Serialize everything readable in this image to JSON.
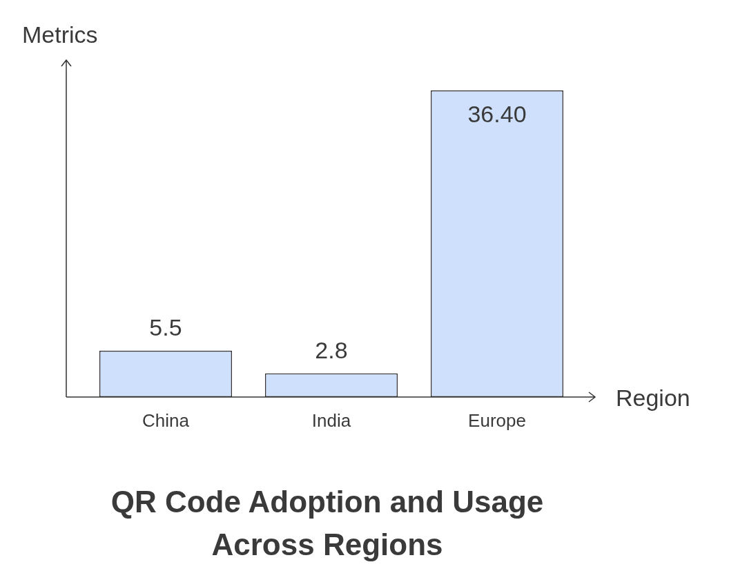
{
  "chart_data": {
    "type": "bar",
    "title": "QR Code Adoption and Usage Across Regions",
    "x_label": "Region",
    "y_label": "Metrics",
    "categories": [
      "China",
      "India",
      "Europe"
    ],
    "values": [
      5.5,
      2.8,
      36.4
    ],
    "value_labels": [
      "5.5",
      "2.8",
      "36.40"
    ],
    "color": "#cfe0fc",
    "ylim": [
      0,
      40
    ],
    "grid": false,
    "data_labels": true,
    "tick_labels": "x"
  }
}
